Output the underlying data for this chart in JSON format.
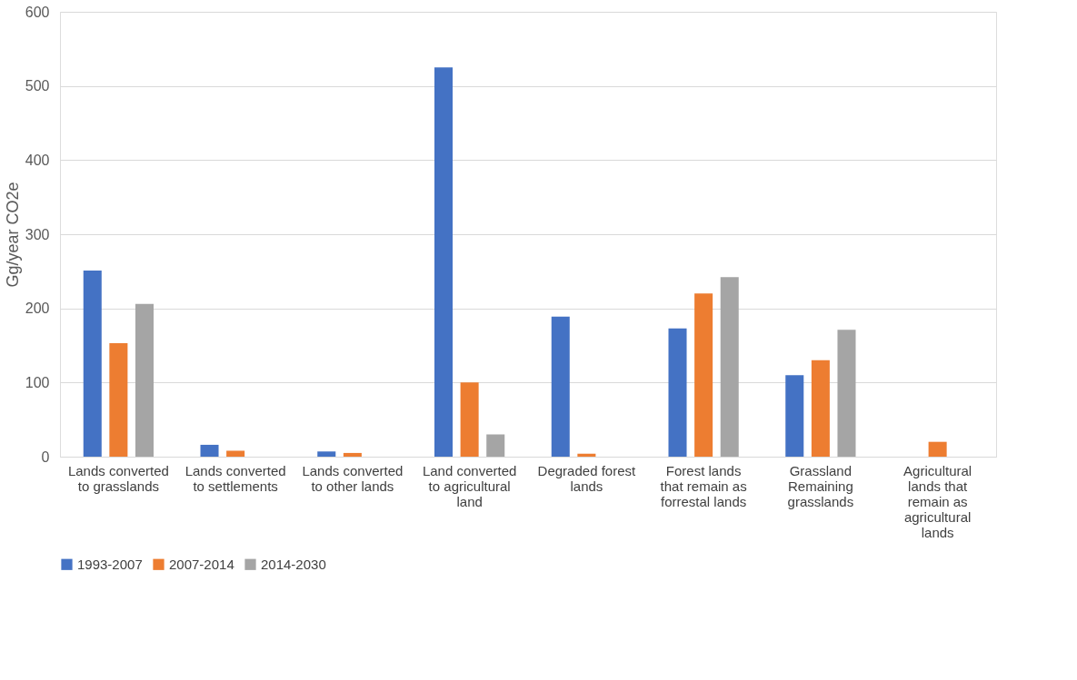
{
  "chart_data": {
    "type": "bar",
    "ylabel": "Gg/year CO2e",
    "categories": [
      "Lands converted to grasslands",
      "Lands converted to settlements",
      "Lands converted to other lands",
      "Land converted to agricultural land",
      "Degraded forest lands",
      "Forest lands that remain as forrestal lands",
      "Grassland Remaining grasslands",
      "Agricultural lands that remain as agricultural lands"
    ],
    "series": [
      {
        "name": "1993-2007",
        "color": "#4472c4",
        "values": [
          251,
          16,
          7,
          525,
          189,
          173,
          110,
          null
        ]
      },
      {
        "name": "2007-2014",
        "color": "#ed7d31",
        "values": [
          153,
          8,
          5,
          100,
          4,
          220,
          130,
          20
        ]
      },
      {
        "name": "2014-2030",
        "color": "#a5a5a5",
        "values": [
          206,
          null,
          null,
          30,
          null,
          242,
          171,
          null
        ]
      }
    ],
    "ylim": [
      0,
      600
    ],
    "yticks": [
      0,
      100,
      200,
      300,
      400,
      500,
      600
    ],
    "grid": "y",
    "legend": "bottom"
  }
}
